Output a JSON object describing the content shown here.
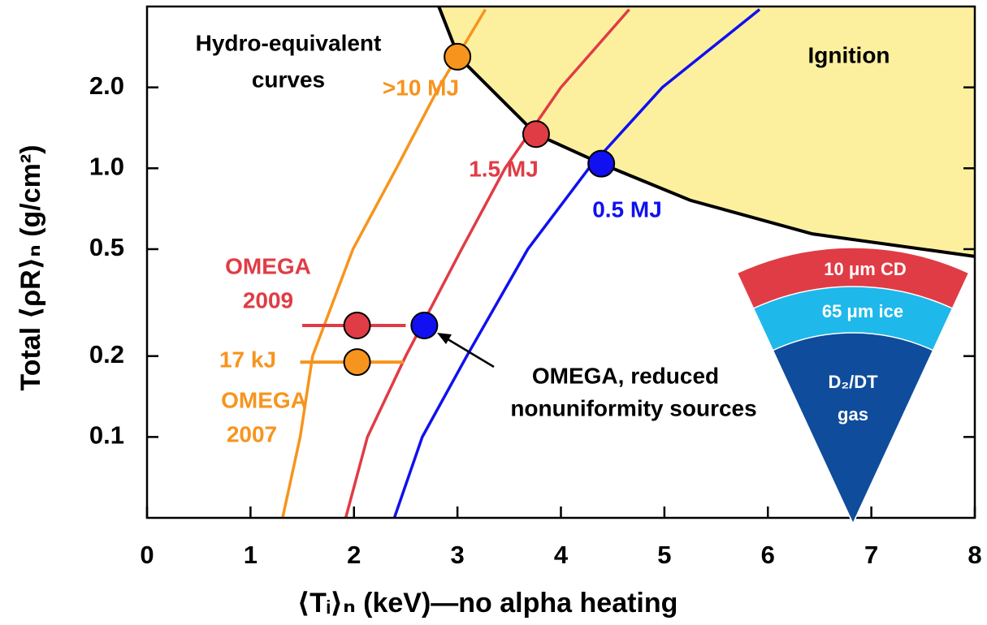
{
  "chart_data": {
    "type": "line",
    "x_label": "⟨Tᵢ⟩ₙ (keV)—no alpha heating",
    "y_label": "Total ⟨ρR⟩ₙ (g/cm²)",
    "xlim": [
      0,
      8
    ],
    "xticks": [
      0,
      1,
      2,
      3,
      4,
      5,
      6,
      7,
      8
    ],
    "ylim": [
      0.05,
      4
    ],
    "yticks": [
      0.1,
      0.2,
      0.5,
      {
        "value": 1,
        "label": "1.0"
      },
      {
        "value": 2,
        "label": "2.0"
      }
    ],
    "y_scale": "log",
    "series": [
      {
        "name": ">10 MJ",
        "color": "#f7941d",
        "x": [
          1.31,
          1.48,
          1.6,
          1.99,
          2.41,
          2.82,
          3.27
        ],
        "values": [
          0.05,
          0.1,
          0.2,
          0.5,
          1,
          2,
          3.9
        ]
      },
      {
        "name": "1.5 MJ",
        "color": "#e03c45",
        "x": [
          1.92,
          2.13,
          2.5,
          3.04,
          3.46,
          4.0,
          4.66
        ],
        "values": [
          0.05,
          0.1,
          0.2,
          0.5,
          1,
          2,
          3.9
        ]
      },
      {
        "name": "0.5 MJ",
        "color": "#1010f0",
        "x": [
          2.39,
          2.66,
          3.09,
          3.68,
          4.27,
          4.98,
          5.92
        ],
        "values": [
          0.05,
          0.1,
          0.2,
          0.5,
          1,
          2,
          3.9
        ]
      }
    ],
    "ignition": {
      "label": "Ignition",
      "color": "#fcf09f",
      "x": [
        2.82,
        3.01,
        3.76,
        4.39,
        5.25,
        6.43,
        8
      ],
      "values": [
        4,
        2.6,
        1.34,
        1.04,
        0.76,
        0.57,
        0.47
      ]
    },
    "points": [
      {
        "color": "#f7941d",
        "x": 3.0,
        "y": 2.6
      },
      {
        "color": "#e03c45",
        "x": 3.76,
        "y": 1.34
      },
      {
        "color": "#1010f0",
        "x": 4.39,
        "y": 1.04
      },
      {
        "color": "#e03c45",
        "x": 2.03,
        "y": 0.26,
        "xmin": 1.5,
        "xmax": 2.5
      },
      {
        "color": "#f7941d",
        "x": 2.03,
        "y": 0.19,
        "xmin": 1.48,
        "xmax": 2.48
      },
      {
        "color": "#1010f0",
        "x": 2.68,
        "y": 0.26
      }
    ],
    "annotations": {
      "hydro": [
        "Hydro-equivalent",
        "curves"
      ],
      "omega_2009": [
        "OMEGA",
        "2009"
      ],
      "kj": [
        "17 kJ"
      ],
      "omega_2007": [
        "OMEGA",
        "2007"
      ],
      "reduced": [
        "OMEGA, reduced",
        "nonuniformity sources"
      ]
    },
    "inset": [
      "10 μm CD",
      "65 μm ice",
      "D₂/DT",
      "gas"
    ]
  }
}
